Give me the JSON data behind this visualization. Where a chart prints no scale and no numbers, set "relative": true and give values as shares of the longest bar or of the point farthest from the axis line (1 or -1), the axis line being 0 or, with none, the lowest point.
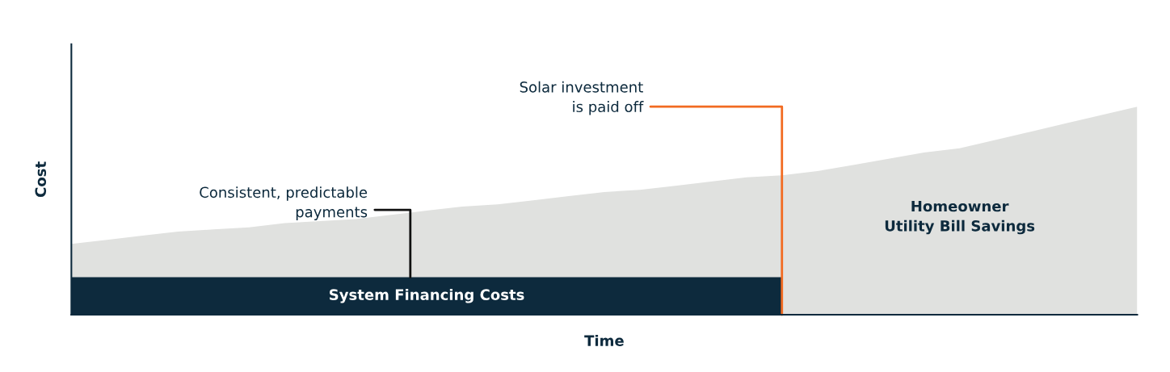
{
  "chart_data": {
    "type": "area",
    "relative": true,
    "xlabel": "Time",
    "ylabel": "Cost",
    "categories": [
      null,
      null,
      null,
      null,
      null,
      null,
      null,
      null,
      null,
      null,
      null,
      null,
      null,
      null,
      null,
      null,
      null,
      null,
      null,
      null,
      null,
      null,
      null,
      null,
      null,
      null,
      null,
      null,
      null,
      null,
      null
    ],
    "series": [
      {
        "name": "Homeowner\nUtility Bill Savings",
        "color": "#e0e1df",
        "values": [
          0.34,
          0.36,
          0.38,
          0.4,
          0.41,
          0.42,
          0.44,
          0.45,
          0.46,
          0.48,
          0.5,
          0.52,
          0.53,
          0.55,
          0.57,
          0.59,
          0.6,
          0.62,
          0.64,
          0.66,
          0.67,
          0.69,
          0.72,
          0.75,
          0.78,
          0.8,
          0.84,
          0.88,
          0.92,
          0.96,
          1.0
        ]
      },
      {
        "name": "System Financing Costs",
        "color": "#0d2a3d",
        "values": [
          0.18,
          0.18,
          0.18,
          0.18,
          0.18,
          0.18,
          0.18,
          0.18,
          0.18,
          0.18,
          0.18,
          0.18,
          0.18,
          0.18,
          0.18,
          0.18,
          0.18,
          0.18,
          0.18,
          0.18,
          0.18,
          null,
          null,
          null,
          null,
          null,
          null,
          null,
          null,
          null,
          null
        ]
      }
    ],
    "annotations": [
      "Consistent, predictable\npayments",
      "Solar investment\nis paid off"
    ],
    "legend": false
  }
}
